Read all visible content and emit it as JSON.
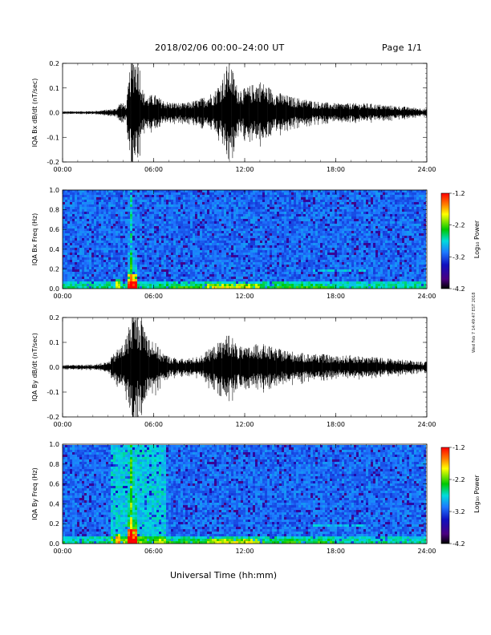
{
  "header": {
    "title": "2018/02/06  00:00–24:00 UT",
    "page": "Page 1/1"
  },
  "xlabel": "Universal Time (hh:mm)",
  "stamp": "Wed Feb 7 14:49:47 EST 2018",
  "colors": {
    "trace": "#000000",
    "colormap": [
      "#000000",
      "#4a0080",
      "#1010c0",
      "#1e78ff",
      "#00dcdc",
      "#00c800",
      "#ffff00",
      "#ff8000",
      "#ff0000"
    ]
  },
  "chart_data": [
    {
      "type": "line",
      "ylabel": "IQA Bx dB/dt (nT/sec)",
      "x_ticks": [
        "00:00",
        "06:00",
        "12:00",
        "18:00",
        "24:00"
      ],
      "xlim": [
        0,
        24
      ],
      "ylim": [
        -0.2,
        0.2
      ],
      "y_ticks": [
        "-0.2",
        "-0.1",
        "0.0",
        "0.1",
        "0.2"
      ],
      "envelope": {
        "x": [
          0,
          2,
          3.5,
          3.8,
          4.2,
          4.5,
          4.7,
          5.0,
          5.3,
          5.6,
          6.0,
          6.5,
          7,
          8,
          9,
          10,
          10.5,
          11,
          11.5,
          12,
          13,
          14,
          15,
          16,
          17,
          18,
          19,
          20,
          21,
          22,
          23,
          24
        ],
        "y": [
          0.005,
          0.006,
          0.015,
          0.04,
          0.03,
          0.2,
          0.22,
          0.22,
          0.08,
          0.06,
          0.07,
          0.05,
          0.04,
          0.035,
          0.05,
          0.08,
          0.13,
          0.2,
          0.1,
          0.09,
          0.12,
          0.08,
          0.06,
          0.05,
          0.04,
          0.035,
          0.035,
          0.035,
          0.03,
          0.025,
          0.02,
          0.015
        ]
      }
    },
    {
      "type": "heatmap",
      "ylabel": "IQA Bx Freq (Hz)",
      "x_ticks": [
        "00:00",
        "06:00",
        "12:00",
        "18:00",
        "24:00"
      ],
      "xlim": [
        0,
        24
      ],
      "ylim": [
        0,
        1.0
      ],
      "y_ticks": [
        "0.0",
        "0.2",
        "0.4",
        "0.6",
        "0.8",
        "1.0"
      ],
      "colorbar": {
        "label": "Log₁₀ Power",
        "ticks": [
          "-1.2",
          "-2.2",
          "-3.2",
          "-4.2"
        ],
        "range": [
          -4.2,
          -1.2
        ]
      }
    },
    {
      "type": "line",
      "ylabel": "IQA By dB/dt (nT/sec)",
      "x_ticks": [
        "00:00",
        "06:00",
        "12:00",
        "18:00",
        "24:00"
      ],
      "xlim": [
        0,
        24
      ],
      "ylim": [
        -0.2,
        0.2
      ],
      "y_ticks": [
        "-0.2",
        "-0.1",
        "0.0",
        "0.1",
        "0.2"
      ],
      "envelope": {
        "x": [
          0,
          2,
          3.0,
          3.5,
          4.0,
          4.3,
          4.6,
          4.8,
          5.0,
          5.3,
          5.6,
          6.0,
          6.5,
          7,
          8,
          9,
          10,
          10.5,
          11,
          11.5,
          12,
          13,
          14,
          15,
          16,
          17,
          18,
          19,
          20,
          21,
          22,
          23,
          24
        ],
        "y": [
          0.008,
          0.01,
          0.02,
          0.06,
          0.09,
          0.13,
          0.22,
          0.22,
          0.2,
          0.18,
          0.12,
          0.1,
          0.06,
          0.04,
          0.03,
          0.04,
          0.08,
          0.1,
          0.13,
          0.08,
          0.07,
          0.09,
          0.07,
          0.06,
          0.05,
          0.05,
          0.04,
          0.045,
          0.04,
          0.035,
          0.03,
          0.025,
          0.02
        ]
      }
    },
    {
      "type": "heatmap",
      "ylabel": "IQA By Freq (Hz)",
      "x_ticks": [
        "00:00",
        "06:00",
        "12:00",
        "18:00",
        "24:00"
      ],
      "xlim": [
        0,
        24
      ],
      "ylim": [
        0,
        1.0
      ],
      "y_ticks": [
        "0.0",
        "0.2",
        "0.4",
        "0.6",
        "0.8",
        "1.0"
      ],
      "colorbar": {
        "label": "Log₁₀ Power",
        "ticks": [
          "-1.2",
          "-2.2",
          "-3.2",
          "-4.2"
        ],
        "range": [
          -4.2,
          -1.2
        ]
      }
    }
  ]
}
